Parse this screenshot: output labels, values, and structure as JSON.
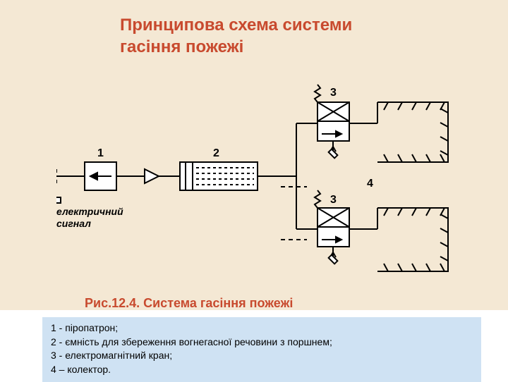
{
  "title": "Принципова схема системи\nгасіння пожежі",
  "caption": "Рис.12.4. Система гасіння пожежі",
  "signal_label": "електричний\nсигнал",
  "labels": {
    "l1": "1",
    "l2": "2",
    "l3a": "3",
    "l3b": "3",
    "l4": "4"
  },
  "legend": {
    "r1": "1 - піропатрон;",
    "r2": "2 - ємність для  збереження вогнегасної речовини з поршнем;",
    "r3": "3 - електромагнітний кран;",
    "r4": "4 – колектор."
  },
  "colors": {
    "bg_slide": "#f4e8d4",
    "title": "#c84a2e",
    "legend_bg": "#cfe2f3",
    "stroke": "#000000"
  }
}
